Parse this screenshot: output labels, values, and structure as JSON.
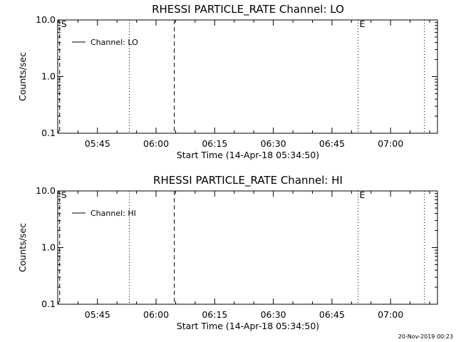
{
  "chart_data": [
    {
      "type": "line",
      "title": "RHESSI PARTICLE_RATE Channel: LO",
      "xlabel": "Start Time (14-Apr-18 05:34:50)",
      "ylabel": "Counts/sec",
      "yscale": "log",
      "ylim": [
        0.1,
        10.0
      ],
      "xlim": [
        "05:34:50",
        "07:12:00"
      ],
      "x_ticks": [
        "05:45",
        "06:00",
        "06:15",
        "06:30",
        "06:45",
        "07:00"
      ],
      "y_ticks": [
        "0.1",
        "1.0",
        "10.0"
      ],
      "legend": {
        "placement": "top-left",
        "entries": [
          "Channel: LO"
        ]
      },
      "series": [
        {
          "name": "Channel: LO",
          "x": [],
          "y": []
        }
      ],
      "markers": [
        {
          "label": "S",
          "x": "05:35:20",
          "style": "dashed"
        },
        {
          "label": "",
          "x": "05:53:10",
          "style": "dotted"
        },
        {
          "label": "",
          "x": "06:04:40",
          "style": "dashed"
        },
        {
          "label": "E",
          "x": "06:51:40",
          "style": "dotted"
        },
        {
          "label": "",
          "x": "07:08:40",
          "style": "dotted"
        }
      ]
    },
    {
      "type": "line",
      "title": "RHESSI PARTICLE_RATE Channel: HI",
      "xlabel": "Start Time (14-Apr-18 05:34:50)",
      "ylabel": "Counts/sec",
      "yscale": "log",
      "ylim": [
        0.1,
        10.0
      ],
      "xlim": [
        "05:34:50",
        "07:12:00"
      ],
      "x_ticks": [
        "05:45",
        "06:00",
        "06:15",
        "06:30",
        "06:45",
        "07:00"
      ],
      "y_ticks": [
        "0.1",
        "1.0",
        "10.0"
      ],
      "legend": {
        "placement": "top-left",
        "entries": [
          "Channel: HI"
        ]
      },
      "series": [
        {
          "name": "Channel: HI",
          "x": [],
          "y": []
        }
      ],
      "markers": [
        {
          "label": "S",
          "x": "05:35:20",
          "style": "dashed"
        },
        {
          "label": "",
          "x": "05:53:10",
          "style": "dotted"
        },
        {
          "label": "",
          "x": "06:04:40",
          "style": "dashed"
        },
        {
          "label": "E",
          "x": "06:51:40",
          "style": "dotted"
        },
        {
          "label": "",
          "x": "07:08:40",
          "style": "dotted"
        }
      ]
    }
  ],
  "footer": {
    "timestamp": "20-Nov-2019 00:23"
  }
}
